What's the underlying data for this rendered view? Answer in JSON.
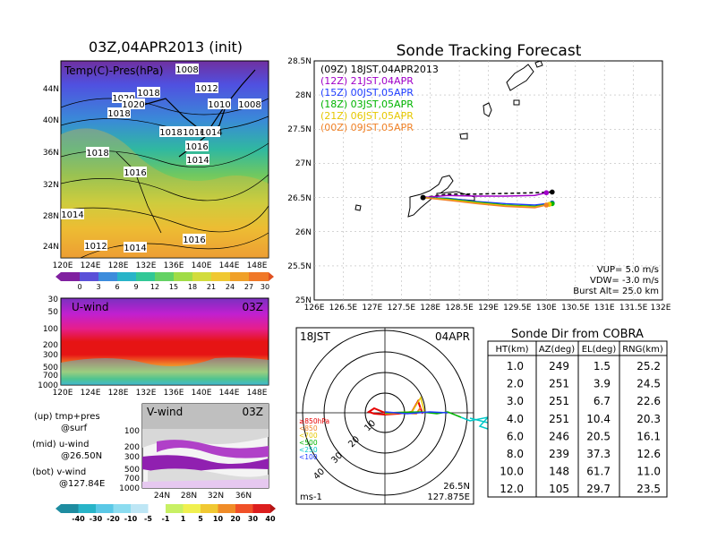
{
  "map_panel": {
    "title": "03Z,04APR2013 (init)",
    "subtitle": "Temp(C)-Pres(hPa)",
    "lat_labels": [
      "24N",
      "28N",
      "32N",
      "36N",
      "40N",
      "44N"
    ],
    "lon_labels": [
      "120E",
      "124E",
      "128E",
      "132E",
      "136E",
      "140E",
      "144E",
      "148E"
    ],
    "isobar_labels": [
      "1008",
      "1012",
      "1010",
      "1008",
      "1018",
      "1020",
      "1020",
      "1018",
      "1018",
      "1016",
      "1014",
      "1016",
      "1018",
      "1014",
      "1016",
      "1014",
      "1016",
      "1012",
      "1014"
    ],
    "colorbar_labels": [
      "0",
      "3",
      "6",
      "9",
      "12",
      "15",
      "18",
      "21",
      "24",
      "27",
      "30"
    ]
  },
  "uwind_panel": {
    "title": "U-wind",
    "time": "03Z",
    "y_labels": [
      "30",
      "50",
      "100",
      "200",
      "300",
      "500",
      "700",
      "1000"
    ],
    "x_labels": [
      "120E",
      "124E",
      "128E",
      "132E",
      "136E",
      "140E",
      "144E",
      "148E"
    ]
  },
  "vwind_panel": {
    "title": "V-wind",
    "time": "03Z",
    "y_labels": [
      "100",
      "200",
      "300",
      "500",
      "700",
      "1000"
    ],
    "x_labels": [
      "24N",
      "28N",
      "32N",
      "36N"
    ],
    "colorbar_labels": [
      "-40",
      "-30",
      "-20",
      "-10",
      "-5",
      "-1",
      "1",
      "5",
      "10",
      "20",
      "30",
      "40"
    ]
  },
  "legend_notes": {
    "up": "(up) tmp+pres",
    "up2": "@surf",
    "mid": "(mid) u-wind",
    "mid2": "@26.50N",
    "bot": "(bot) v-wind",
    "bot2": "@127.84E"
  },
  "tracking": {
    "title": "Sonde Tracking Forecast",
    "y_labels": [
      "25N",
      "25.5N",
      "26N",
      "26.5N",
      "27N",
      "27.5N",
      "28N",
      "28.5N"
    ],
    "x_labels": [
      "126E",
      "126.5E",
      "127E",
      "127.5E",
      "128E",
      "128.5E",
      "129E",
      "129.5E",
      "130E",
      "130.5E",
      "131E",
      "131.5E",
      "132E"
    ],
    "params": [
      "VUP= 5.0 m/s",
      "VDW= -3.0 m/s",
      "Burst Alt= 25.0 km"
    ]
  },
  "chart_data": [
    {
      "type": "line",
      "title": "Sonde Tracking Forecast",
      "xlim": [
        126,
        132
      ],
      "ylim": [
        25,
        28.5
      ],
      "launch": [
        127.875,
        26.5
      ],
      "series": [
        {
          "name": "(09Z) 18JST,04APR2013",
          "color": "#000000",
          "dash": true,
          "x": [
            127.875,
            128.3,
            128.8,
            129.3,
            129.8,
            130.1
          ],
          "y": [
            26.5,
            26.55,
            26.55,
            26.56,
            26.57,
            26.58
          ]
        },
        {
          "name": "(12Z) 21JST,04APR",
          "color": "#a000c8",
          "dash": false,
          "x": [
            127.875,
            128.3,
            128.8,
            129.3,
            129.8,
            130.0
          ],
          "y": [
            26.5,
            26.53,
            26.52,
            26.52,
            26.53,
            26.57
          ]
        },
        {
          "name": "(15Z) 00JST,05APR",
          "color": "#1e3cff",
          "dash": false,
          "x": [
            127.875,
            128.3,
            128.8,
            129.3,
            129.8,
            130.1
          ],
          "y": [
            26.5,
            26.49,
            26.44,
            26.41,
            26.39,
            26.42
          ]
        },
        {
          "name": "(18Z) 03JST,05APR",
          "color": "#00b400",
          "dash": false,
          "x": [
            127.875,
            128.3,
            128.8,
            129.3,
            129.8,
            130.1
          ],
          "y": [
            26.5,
            26.48,
            26.43,
            26.39,
            26.37,
            26.41
          ]
        },
        {
          "name": "(21Z) 06JST,05APR",
          "color": "#e6c800",
          "dash": false,
          "x": [
            127.875,
            128.3,
            128.8,
            129.3,
            129.8,
            130.05
          ],
          "y": [
            26.5,
            26.47,
            26.42,
            26.38,
            26.36,
            26.4
          ]
        },
        {
          "name": "(00Z) 09JST,05APR",
          "color": "#f08228",
          "dash": false,
          "x": [
            127.875,
            128.3,
            128.8,
            129.3,
            129.8,
            130.0
          ],
          "y": [
            26.5,
            26.46,
            26.41,
            26.37,
            26.35,
            26.39
          ]
        }
      ]
    },
    {
      "type": "table",
      "title": "Sonde Dir from COBRA",
      "columns": [
        "HT(km)",
        "AZ(deg)",
        "EL(deg)",
        "RNG(km)"
      ],
      "rows": [
        [
          "1.0",
          "249",
          "1.5",
          "25.2"
        ],
        [
          "2.0",
          "251",
          "3.9",
          "24.5"
        ],
        [
          "3.0",
          "251",
          "6.7",
          "22.6"
        ],
        [
          "4.0",
          "251",
          "10.4",
          "20.3"
        ],
        [
          "6.0",
          "246",
          "20.5",
          "16.1"
        ],
        [
          "8.0",
          "239",
          "37.3",
          "12.6"
        ],
        [
          "10.0",
          "148",
          "61.7",
          "11.0"
        ],
        [
          "12.0",
          "105",
          "29.7",
          "23.5"
        ]
      ]
    }
  ],
  "hodograph": {
    "time": "18JST",
    "date": "04APR",
    "rings": [
      "10",
      "20",
      "30",
      "40"
    ],
    "levels": [
      {
        "label": "≥850hPa",
        "color": "#e60000"
      },
      {
        "label": "<850",
        "color": "#f08228"
      },
      {
        "label": "<700",
        "color": "#e6c800"
      },
      {
        "label": "<500",
        "color": "#00b400"
      },
      {
        "label": "<250",
        "color": "#00c8c8"
      },
      {
        "label": "<100",
        "color": "#1e3cff"
      }
    ],
    "unit": "ms-1",
    "lat": "26.5N",
    "lon": "127.875E"
  }
}
